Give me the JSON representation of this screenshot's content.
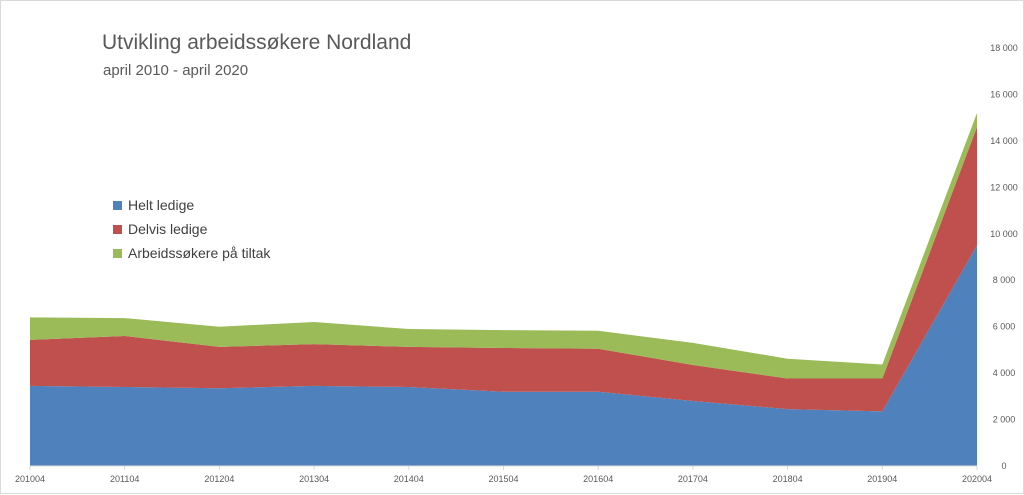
{
  "chart_data": {
    "type": "area",
    "stacked": true,
    "title": "Utvikling arbeidssøkere Nordland",
    "subtitle": "april 2010 - april 2020",
    "xlabel": "",
    "ylabel": "",
    "x": [
      "201004",
      "201104",
      "201204",
      "201304",
      "201404",
      "201504",
      "201604",
      "201704",
      "201804",
      "201904",
      "202004"
    ],
    "ylim": [
      0,
      18000
    ],
    "yticks": [
      0,
      2000,
      4000,
      6000,
      8000,
      10000,
      12000,
      14000,
      16000,
      18000
    ],
    "ytick_labels": [
      "0",
      "2 000",
      "4 000",
      "6 000",
      "8 000",
      "10 000",
      "12 000",
      "14 000",
      "16 000",
      "18 000"
    ],
    "y_axis_position": "right",
    "grid": false,
    "legend_position": "left",
    "series": [
      {
        "name": "Helt ledige",
        "color": "#4f81bd",
        "values": [
          3450,
          3400,
          3350,
          3450,
          3400,
          3200,
          3200,
          2800,
          2450,
          2350,
          9500
        ]
      },
      {
        "name": "Delvis ledige",
        "color": "#c0504d",
        "values": [
          1980,
          2200,
          1780,
          1800,
          1730,
          1880,
          1850,
          1550,
          1320,
          1420,
          5100
        ]
      },
      {
        "name": "Arbeidssøkere på tiltak",
        "color": "#9bbb59",
        "values": [
          970,
          770,
          870,
          950,
          770,
          770,
          770,
          950,
          850,
          600,
          600
        ]
      }
    ]
  }
}
